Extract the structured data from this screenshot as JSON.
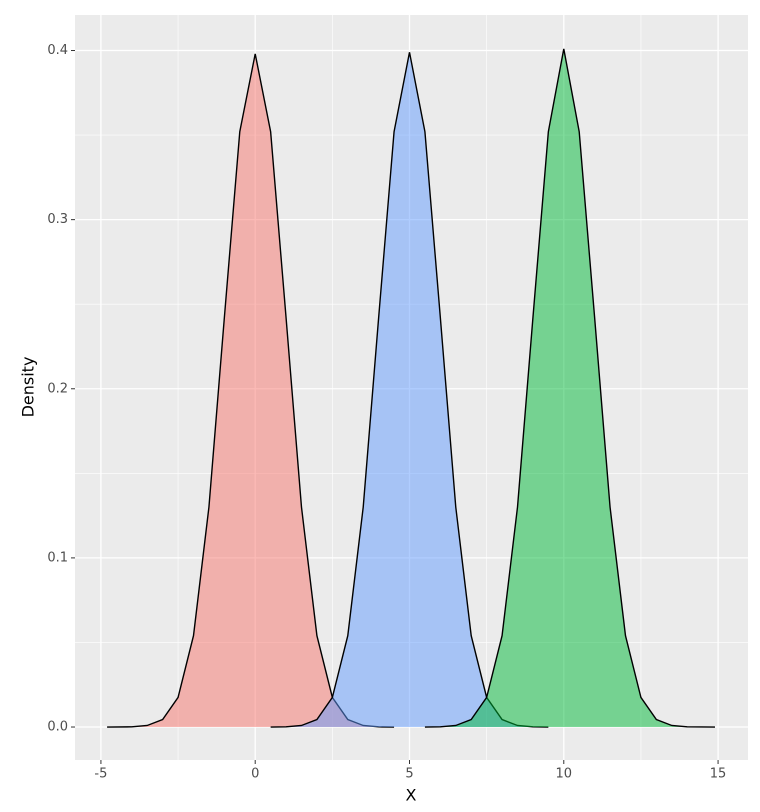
{
  "chart_data": {
    "type": "density",
    "xlabel": "X",
    "ylabel": "Density",
    "xlim": [
      -5.84,
      15.97
    ],
    "ylim": [
      -0.0195,
      0.421
    ],
    "xticks": [
      -5,
      0,
      5,
      10,
      15
    ],
    "yticks": [
      {
        "value": 0,
        "label": "0.0"
      },
      {
        "value": 0.1,
        "label": "0.1"
      },
      {
        "value": 0.2,
        "label": "0.2"
      },
      {
        "value": 0.3,
        "label": "0.3"
      },
      {
        "value": 0.4,
        "label": "0.4"
      }
    ],
    "x_minor_ticks": [
      -2.5,
      2.5,
      7.5,
      12.5
    ],
    "y_minor_ticks": [
      0.05,
      0.15,
      0.25,
      0.35
    ],
    "grid": true,
    "series": [
      {
        "color": "#f8766d",
        "x": [
          -4.8,
          -4,
          -3.5,
          -3,
          -2.5,
          -2,
          -1.5,
          -1,
          -0.5,
          0,
          0.5,
          1,
          1.5,
          2,
          2.5,
          3,
          3.5,
          4,
          4.5
        ],
        "values": [
          0,
          0.0001,
          0.0009,
          0.0044,
          0.0175,
          0.054,
          0.13,
          0.242,
          0.352,
          0.398,
          0.352,
          0.242,
          0.13,
          0.054,
          0.0175,
          0.0044,
          0.0009,
          0.0001,
          0
        ]
      },
      {
        "color": "#619cff",
        "x": [
          0.5,
          1,
          1.5,
          2,
          2.5,
          3,
          3.5,
          4,
          4.5,
          5,
          5.5,
          6,
          6.5,
          7,
          7.5,
          8,
          8.5,
          9,
          9.5
        ],
        "values": [
          0,
          0.0001,
          0.0009,
          0.0044,
          0.0175,
          0.054,
          0.13,
          0.242,
          0.352,
          0.399,
          0.352,
          0.242,
          0.13,
          0.054,
          0.0175,
          0.0044,
          0.0009,
          0.0001,
          0
        ]
      },
      {
        "color": "#00ba38",
        "x": [
          5.5,
          6,
          6.5,
          7,
          7.5,
          8,
          8.5,
          9,
          9.5,
          10,
          10.5,
          11,
          11.5,
          12,
          12.5,
          13,
          13.5,
          14,
          14.9
        ],
        "values": [
          0,
          0.0001,
          0.0009,
          0.0044,
          0.0175,
          0.054,
          0.13,
          0.242,
          0.352,
          0.401,
          0.352,
          0.242,
          0.13,
          0.054,
          0.0175,
          0.0044,
          0.0009,
          0.0001,
          0
        ]
      }
    ]
  }
}
